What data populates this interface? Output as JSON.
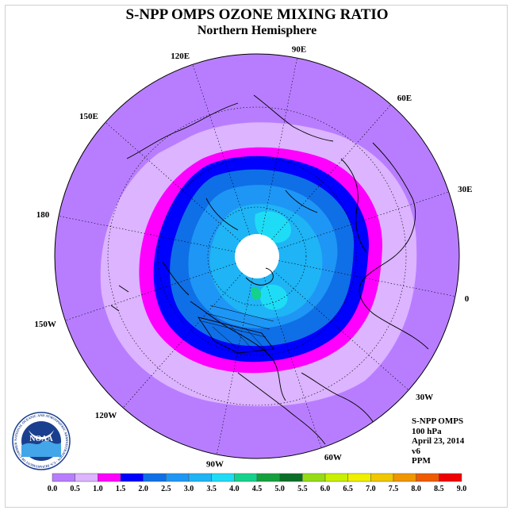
{
  "header": {
    "title": "S-NPP OMPS OZONE MIXING RATIO",
    "subtitle": "Northern Hemisphere"
  },
  "longitude_labels": [
    {
      "label": "90E",
      "lon": 90
    },
    {
      "label": "60E",
      "lon": 60
    },
    {
      "label": "30E",
      "lon": 30
    },
    {
      "label": "0",
      "lon": 0
    },
    {
      "label": "30W",
      "lon": -30
    },
    {
      "label": "60W",
      "lon": -60
    },
    {
      "label": "90W",
      "lon": -90
    },
    {
      "label": "120W",
      "lon": -120
    },
    {
      "label": "150W",
      "lon": -150
    },
    {
      "label": "180",
      "lon": 180
    },
    {
      "label": "150E",
      "lon": 150
    },
    {
      "label": "120E",
      "lon": 120
    }
  ],
  "info": {
    "instrument": "S-NPP OMPS",
    "level": "100 hPa",
    "date": "April 23, 2014",
    "version": "v6",
    "units": "PPM"
  },
  "colorbar": {
    "ticks": [
      "0.0",
      "0.5",
      "1.0",
      "1.5",
      "2.0",
      "2.5",
      "3.0",
      "3.5",
      "4.0",
      "4.5",
      "5.0",
      "5.5",
      "6.0",
      "6.5",
      "7.0",
      "7.5",
      "8.0",
      "8.5",
      "9.0"
    ],
    "colors": [
      "#b87dff",
      "#dcb4ff",
      "#ff00ff",
      "#0000ff",
      "#0f6fe6",
      "#1e96f5",
      "#1eb4f5",
      "#1edcf5",
      "#14d28c",
      "#14a03c",
      "#0a6e28",
      "#96dc14",
      "#c8f000",
      "#f0f000",
      "#f0c800",
      "#f09600",
      "#f05a00",
      "#f00000",
      "#8c5a3c"
    ]
  },
  "map_colors": {
    "level_0_0": "#b87dff",
    "level_0_5": "#dcb4ff",
    "level_1_0": "#ff00ff",
    "level_1_5": "#0000ff",
    "level_2_0": "#0f6fe6",
    "level_2_5": "#1e96f5",
    "level_3_0": "#1eb4f5",
    "level_3_5": "#1edcf5",
    "no_data": "#ffffff"
  },
  "logo": {
    "text": "NOAA",
    "ring_text": "NATIONAL OCEANIC AND ATMOSPHERIC ADMINISTRATION · U.S. DEPARTMENT OF COMMERCE"
  }
}
